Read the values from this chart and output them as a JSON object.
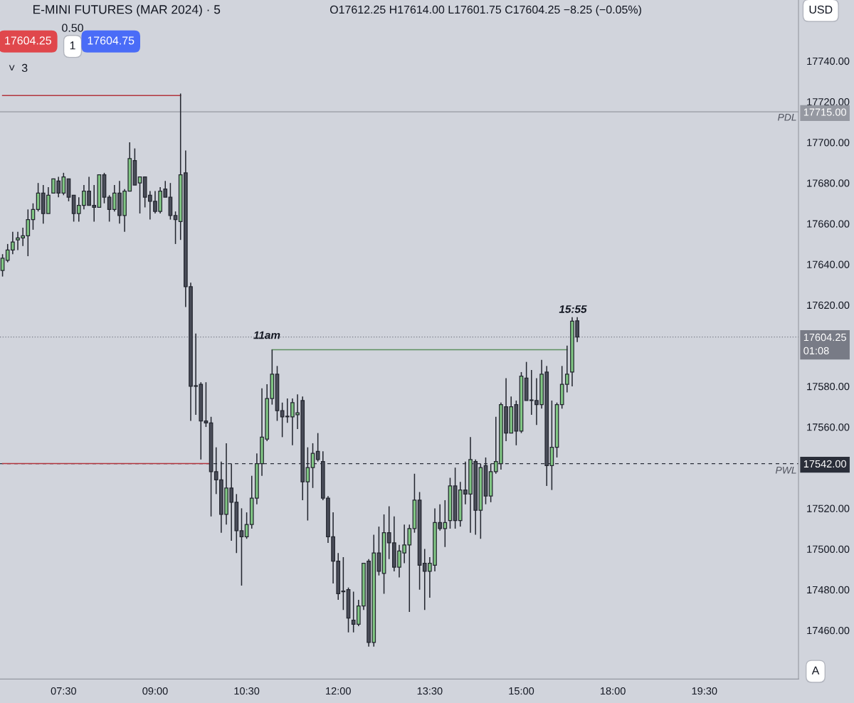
{
  "chart_data": {
    "type": "candlestick",
    "title": "E-MINI FUTURES (MAR 2024) · 5",
    "colors": [
      "#81c784",
      "#4a4d59"
    ],
    "categories": [
      null,
      null,
      null,
      null,
      null,
      null,
      null,
      null,
      null,
      null,
      null,
      null,
      "07:30",
      null,
      null,
      null,
      null,
      null,
      null,
      null,
      null,
      null,
      null,
      null,
      null,
      null,
      null,
      null,
      null,
      null,
      "09:00",
      null,
      null,
      null,
      null,
      null,
      null,
      null,
      null,
      null,
      null,
      null,
      null,
      null,
      null,
      null,
      null,
      null,
      "10:30",
      null,
      null,
      null,
      null,
      null,
      null,
      null,
      null,
      null,
      null,
      null,
      null,
      null,
      null,
      null,
      null,
      null,
      "12:00",
      null,
      null,
      null,
      null,
      null,
      null,
      null,
      null,
      null,
      null,
      null,
      null,
      null,
      null,
      null,
      null,
      null,
      "13:30",
      null,
      null,
      null,
      null,
      null,
      null,
      null,
      null,
      null,
      null,
      null,
      null,
      null,
      null,
      null,
      null,
      null,
      "15:00",
      null,
      null,
      null,
      null,
      null,
      null,
      null,
      null,
      null,
      null,
      null,
      null,
      null,
      null,
      null,
      null,
      null,
      "18:00",
      null,
      null,
      null,
      null,
      null,
      null,
      null,
      null,
      null,
      null,
      null,
      null,
      null,
      null,
      null,
      null,
      null,
      "19:30",
      null,
      null,
      null,
      null,
      null,
      null,
      null,
      null,
      null,
      null,
      null,
      null,
      null,
      null,
      null,
      null,
      null,
      null
    ],
    "series": [
      {
        "ohlc": [
          [
            17637,
            17645,
            17634,
            17643
          ],
          [
            17642,
            17650,
            17641,
            17647
          ],
          [
            17647,
            17656,
            17645,
            17651
          ],
          [
            17652,
            17656,
            17647,
            17653
          ],
          [
            17653,
            17658,
            17649,
            17654
          ],
          [
            17654,
            17667,
            17644,
            17662
          ],
          [
            17662,
            17670,
            17657,
            17667
          ],
          [
            17667,
            17680,
            17666,
            17675
          ],
          [
            17675,
            17679,
            17660,
            17665
          ],
          [
            17665,
            17678,
            17665,
            17674
          ],
          [
            17675,
            17682,
            17675,
            17682
          ],
          [
            17681,
            17683,
            17673,
            17675
          ],
          [
            17675,
            17685,
            17674,
            17683
          ],
          [
            17682,
            17682,
            17671,
            17673
          ],
          [
            17674,
            17674,
            17661,
            17665
          ],
          [
            17665,
            17673,
            17661,
            17669
          ],
          [
            17669,
            17679,
            17667,
            17676
          ],
          [
            17676,
            17683,
            17669,
            17669
          ],
          [
            17669,
            17679,
            17661,
            17668
          ],
          [
            17668,
            17684,
            17668,
            17684
          ],
          [
            17684,
            17685,
            17670,
            17673
          ],
          [
            17673,
            17674,
            17661,
            17667
          ],
          [
            17667,
            17679,
            17666,
            17675
          ],
          [
            17675,
            17681,
            17660,
            17664
          ],
          [
            17664,
            17677,
            17656,
            17676
          ],
          [
            17676,
            17700,
            17676,
            17692
          ],
          [
            17691,
            17697,
            17679,
            17679
          ],
          [
            17680,
            17683,
            17665,
            17683
          ],
          [
            17683,
            17683,
            17668,
            17673
          ],
          [
            17674,
            17676,
            17662,
            17671
          ],
          [
            17671,
            17676,
            17665,
            17666
          ],
          [
            17666,
            17678,
            17665,
            17676
          ],
          [
            17677,
            17681,
            17673,
            17673
          ],
          [
            17673,
            17680,
            17662,
            17664
          ],
          [
            17664,
            17666,
            17650,
            17662
          ],
          [
            17661,
            17724,
            17652,
            17684
          ],
          [
            17685,
            17696,
            17619,
            17629
          ],
          [
            17629,
            17631,
            17563,
            17580
          ],
          [
            17580,
            17606,
            17566,
            17580
          ],
          [
            17581,
            17582,
            17544,
            17563
          ],
          [
            17563,
            17582,
            17560,
            17562
          ],
          [
            17562,
            17565,
            17516,
            17538
          ],
          [
            17538,
            17550,
            17527,
            17534
          ],
          [
            17534,
            17543,
            17508,
            17517
          ],
          [
            17517,
            17552,
            17512,
            17530
          ],
          [
            17530,
            17542,
            17504,
            17523
          ],
          [
            17523,
            17527,
            17498,
            17509
          ],
          [
            17509,
            17520,
            17482,
            17506
          ],
          [
            17506,
            17518,
            17505,
            17512
          ],
          [
            17512,
            17536,
            17510,
            17525
          ],
          [
            17525,
            17547,
            17522,
            17542
          ],
          [
            17542,
            17579,
            17536,
            17555
          ],
          [
            17554,
            17581,
            17553,
            17574
          ],
          [
            17574,
            17598,
            17571,
            17586
          ],
          [
            17586,
            17590,
            17563,
            17568
          ],
          [
            17568,
            17572,
            17555,
            17565
          ],
          [
            17565,
            17574,
            17562,
            17565
          ],
          [
            17565,
            17574,
            17551,
            17572
          ],
          [
            17566,
            17576,
            17559,
            17567
          ],
          [
            17573,
            17575,
            17524,
            17533
          ],
          [
            17533,
            17550,
            17514,
            17540
          ],
          [
            17540,
            17552,
            17530,
            17547
          ],
          [
            17548,
            17557,
            17543,
            17544
          ],
          [
            17543,
            17548,
            17524,
            17525
          ],
          [
            17525,
            17526,
            17503,
            17506
          ],
          [
            17506,
            17518,
            17483,
            17494
          ],
          [
            17494,
            17498,
            17475,
            17478
          ],
          [
            17479,
            17496,
            17470,
            17479
          ],
          [
            17480,
            17481,
            17459,
            17466
          ],
          [
            17465,
            17479,
            17459,
            17463
          ],
          [
            17463,
            17475,
            17462,
            17472
          ],
          [
            17472,
            17493,
            17470,
            17493
          ],
          [
            17494,
            17495,
            17452,
            17454
          ],
          [
            17454,
            17507,
            17452,
            17498
          ],
          [
            17498,
            17511,
            17487,
            17489
          ],
          [
            17488,
            17517,
            17478,
            17508
          ],
          [
            17508,
            17521,
            17495,
            17503
          ],
          [
            17503,
            17516,
            17489,
            17491
          ],
          [
            17491,
            17502,
            17486,
            17499
          ],
          [
            17498,
            17512,
            17493,
            17502
          ],
          [
            17502,
            17512,
            17469,
            17510
          ],
          [
            17510,
            17537,
            17508,
            17524
          ],
          [
            17524,
            17528,
            17480,
            17492
          ],
          [
            17493,
            17500,
            17470,
            17489
          ],
          [
            17489,
            17496,
            17476,
            17493
          ],
          [
            17492,
            17520,
            17489,
            17513
          ],
          [
            17513,
            17522,
            17509,
            17510
          ],
          [
            17510,
            17524,
            17501,
            17513
          ],
          [
            17514,
            17535,
            17510,
            17531
          ],
          [
            17531,
            17540,
            17510,
            17514
          ],
          [
            17514,
            17533,
            17511,
            17529
          ],
          [
            17529,
            17543,
            17522,
            17527
          ],
          [
            17527,
            17555,
            17508,
            17544
          ],
          [
            17543,
            17544,
            17507,
            17519
          ],
          [
            17519,
            17542,
            17505,
            17540
          ],
          [
            17541,
            17545,
            17522,
            17526
          ],
          [
            17526,
            17542,
            17523,
            17538
          ],
          [
            17538,
            17565,
            17537,
            17543
          ],
          [
            17542,
            17572,
            17539,
            17571
          ],
          [
            17570,
            17584,
            17553,
            17557
          ],
          [
            17557,
            17575,
            17557,
            17570
          ],
          [
            17571,
            17573,
            17551,
            17558
          ],
          [
            17558,
            17587,
            17557,
            17585
          ],
          [
            17584,
            17592,
            17573,
            17573
          ],
          [
            17573,
            17588,
            17566,
            17573
          ],
          [
            17573,
            17584,
            17561,
            17571
          ],
          [
            17571,
            17593,
            17569,
            17586
          ],
          [
            17587,
            17590,
            17531,
            17541
          ],
          [
            17541,
            17573,
            17529,
            17550
          ],
          [
            17550,
            17572,
            17545,
            17571
          ],
          [
            17571,
            17590,
            17569,
            17581
          ],
          [
            17581,
            17600,
            17577,
            17586
          ],
          [
            17587,
            17614,
            17580,
            17612
          ],
          [
            17612.25,
            17614,
            17601.75,
            17604.25
          ],
          null,
          null,
          null,
          null,
          null,
          null,
          null,
          null,
          null,
          null,
          null,
          null,
          null,
          null,
          null,
          null,
          null,
          null,
          null,
          null,
          null,
          null,
          null,
          null,
          null,
          null,
          null,
          null,
          null,
          null,
          null,
          null,
          null,
          null,
          null,
          null,
          null,
          null,
          null,
          null,
          null,
          null,
          null
        ]
      },
      {
        "type": "line",
        "color": "#b2343d",
        "values": [
          17723,
          17723,
          17723,
          17723,
          17723,
          17723,
          17723,
          17723,
          17723,
          17723,
          17723,
          17723,
          17723,
          17723,
          17723,
          17723,
          17723,
          17723,
          17723,
          17723,
          17723,
          17723,
          17723,
          17723,
          17723,
          17723,
          17723,
          17723,
          17723,
          17723,
          17723,
          17723,
          17723,
          17723,
          17723,
          17723,
          null,
          null,
          null,
          null,
          null,
          null,
          null,
          null,
          null,
          null,
          null,
          null,
          null,
          null,
          null,
          null,
          null,
          null,
          null,
          null,
          null,
          null,
          null,
          null,
          null,
          null,
          null,
          null,
          null,
          null,
          null,
          null,
          null,
          null,
          null,
          null,
          null,
          null,
          null,
          null,
          null,
          null,
          null,
          null,
          null,
          null,
          null,
          null,
          null,
          null,
          null,
          null,
          null,
          null,
          null,
          null,
          null,
          null,
          null,
          null,
          null,
          null,
          null,
          null,
          null,
          null,
          null,
          null,
          null,
          null,
          null,
          null,
          null,
          null,
          null,
          null,
          null,
          null,
          null,
          null,
          null,
          null,
          null,
          null,
          null,
          null,
          null,
          null,
          null,
          null,
          null,
          null,
          null,
          null,
          null,
          null,
          null,
          null,
          null,
          null,
          null,
          null,
          null,
          null,
          null,
          null,
          null,
          null,
          null,
          null,
          null,
          null,
          null,
          null,
          null,
          null,
          null,
          null,
          null,
          null,
          null
        ]
      },
      {
        "type": "line",
        "color": "#b2343d",
        "values": [
          17542,
          17542,
          17542,
          17542,
          17542,
          17542,
          17542,
          17542,
          17542,
          17542,
          17542,
          17542,
          17542,
          17542,
          17542,
          17542,
          17542,
          17542,
          17542,
          17542,
          17542,
          17542,
          17542,
          17542,
          17542,
          17542,
          17542,
          17542,
          17542,
          17542,
          17542,
          17542,
          17542,
          17542,
          17542,
          17542,
          17542,
          17542,
          17542,
          17542,
          17542,
          17542,
          null,
          null,
          null,
          null,
          null,
          null,
          null,
          null,
          null,
          null,
          null,
          null,
          null,
          null,
          null,
          null,
          null,
          null,
          null,
          null,
          null,
          null,
          null,
          null,
          null,
          null,
          null,
          null,
          null,
          null,
          null,
          null,
          null,
          null,
          null,
          null,
          null,
          null,
          null,
          null,
          null,
          null,
          null,
          null,
          null,
          null,
          null,
          null,
          null,
          null,
          null,
          null,
          null,
          null,
          null,
          null,
          null,
          null,
          null,
          null,
          null,
          null,
          null,
          null,
          null,
          null,
          null,
          null,
          null,
          null,
          null,
          null,
          null,
          null,
          null,
          null,
          null,
          null,
          null,
          null,
          null,
          null,
          null,
          null,
          null,
          null,
          null,
          null,
          null,
          null,
          null,
          null,
          null,
          null,
          null,
          null,
          null,
          null,
          null,
          null,
          null,
          null,
          null,
          null,
          null,
          null,
          null,
          null,
          null,
          null,
          null,
          null,
          null,
          null,
          null
        ]
      },
      {
        "type": "line",
        "color": "#5d8f5e",
        "values": [
          null,
          null,
          null,
          null,
          null,
          null,
          null,
          null,
          null,
          null,
          null,
          null,
          null,
          null,
          null,
          null,
          null,
          null,
          null,
          null,
          null,
          null,
          null,
          null,
          null,
          null,
          null,
          null,
          null,
          null,
          null,
          null,
          null,
          null,
          null,
          null,
          null,
          null,
          null,
          null,
          null,
          null,
          null,
          null,
          null,
          null,
          null,
          null,
          null,
          null,
          null,
          null,
          null,
          17598,
          17598,
          17598,
          17598,
          17598,
          17598,
          17598,
          17598,
          17598,
          17598,
          17598,
          17598,
          17598,
          17598,
          17598,
          17598,
          17598,
          17598,
          17598,
          17598,
          17598,
          17598,
          17598,
          17598,
          17598,
          17598,
          17598,
          17598,
          17598,
          17598,
          17598,
          17598,
          17598,
          17598,
          17598,
          17598,
          17598,
          17598,
          17598,
          17598,
          17598,
          17598,
          17598,
          17598,
          17598,
          17598,
          17598,
          17598,
          17598,
          17598,
          17598,
          17598,
          17598,
          17598,
          17598,
          17598,
          17598,
          17598,
          17598,
          null,
          null,
          null,
          null,
          null,
          null,
          null,
          null,
          null,
          null,
          null,
          null,
          null,
          null,
          null,
          null,
          null,
          null,
          null,
          null,
          null,
          null,
          null,
          null,
          null,
          null,
          null,
          null,
          null,
          null,
          null,
          null,
          null,
          null,
          null,
          null,
          null,
          null,
          null,
          null,
          null,
          null,
          null,
          null,
          null
        ]
      }
    ],
    "ref_lines": [
      {
        "axis": "y",
        "value": 17715,
        "label": "17715.00",
        "color": "#9598a1",
        "line_style": "solid"
      },
      {
        "axis": "y",
        "value": 17542,
        "label": "17542.00",
        "color": "#2a2e39",
        "line_style": "dashed"
      },
      {
        "axis": "y",
        "value": 17604.25,
        "label": "17604.25\n01:08",
        "color": "#787b86",
        "line_style": "dotted"
      }
    ],
    "annotations": [
      "O17612.25 H17614.00 L17601.75 C17604.25 −8.25 (−0.05%)",
      "17604.25",
      "0.50",
      "1",
      "17604.75",
      "˅  3",
      "USD",
      "A",
      "PDL",
      "PWL",
      "11am",
      "15:55"
    ],
    "ylim": [
      17436,
      17770
    ],
    "yticks": [
      {
        "value": 17460,
        "label": "17460.00"
      },
      {
        "value": 17480,
        "label": "17480.00"
      },
      {
        "value": 17500,
        "label": "17500.00"
      },
      {
        "value": 17520,
        "label": "17520.00"
      },
      {
        "value": 17560,
        "label": "17560.00"
      },
      {
        "value": 17580,
        "label": "17580.00"
      },
      {
        "value": 17620,
        "label": "17620.00"
      },
      {
        "value": 17640,
        "label": "17640.00"
      },
      {
        "value": 17660,
        "label": "17660.00"
      },
      {
        "value": 17680,
        "label": "17680.00"
      },
      {
        "value": 17700,
        "label": "17700.00"
      },
      {
        "value": 17720,
        "label": "17720.00"
      },
      {
        "value": 17740,
        "label": "17740.00"
      }
    ],
    "grid": false
  }
}
